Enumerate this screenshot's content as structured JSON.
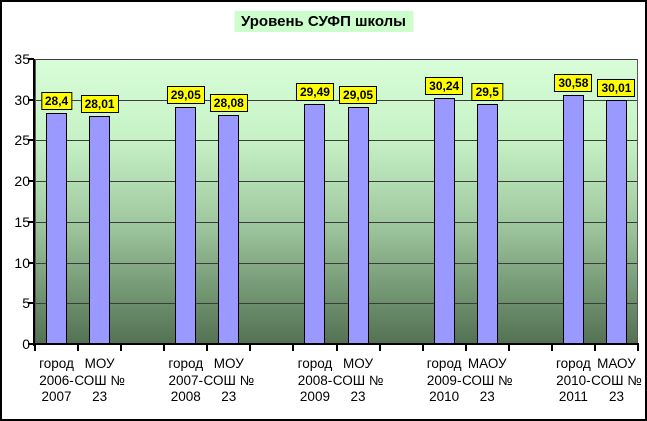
{
  "title": {
    "text": "Уровень СУФП школы"
  },
  "chart_data": {
    "type": "bar",
    "title": "Уровень СУФП школы",
    "xlabel": "",
    "ylabel": "",
    "ylim": [
      0,
      35
    ],
    "yticks": [
      0,
      5,
      10,
      15,
      20,
      25,
      30,
      35
    ],
    "grid": true,
    "legend_position": "none",
    "decimal_separator": ",",
    "categories": [
      "город 2006-2007",
      "МОУ СОШ № 23",
      "город 2007-2008",
      "МОУ СОШ № 23",
      "город 2008-2009",
      "МОУ СОШ № 23",
      "город 2009-2010",
      "МАОУ СОШ № 23",
      "город 2010-2011",
      "МАОУ СОШ № 23"
    ],
    "category_lines": [
      [
        "город",
        "2006-",
        "2007"
      ],
      [
        "МОУ",
        "СОШ №",
        "23"
      ],
      [
        "город",
        "2007-",
        "2008"
      ],
      [
        "МОУ",
        "СОШ №",
        "23"
      ],
      [
        "город",
        "2008-",
        "2009"
      ],
      [
        "МОУ",
        "СОШ №",
        "23"
      ],
      [
        "город",
        "2009-",
        "2010"
      ],
      [
        "МАОУ",
        "СОШ №",
        "23"
      ],
      [
        "город",
        "2010-",
        "2011"
      ],
      [
        "МАОУ",
        "СОШ №",
        "23"
      ]
    ],
    "values": [
      28.4,
      28.01,
      29.05,
      28.08,
      29.49,
      29.05,
      30.24,
      29.5,
      30.58,
      30.01
    ],
    "value_labels": [
      "28,4",
      "28,01",
      "29,05",
      "28,08",
      "29,49",
      "29,05",
      "30,24",
      "29,5",
      "30,58",
      "30,01"
    ],
    "group_pairs": [
      [
        0,
        1
      ],
      [
        2,
        3
      ],
      [
        4,
        5
      ],
      [
        6,
        7
      ],
      [
        8,
        9
      ]
    ],
    "colors": {
      "bar_fill": "#9999ff",
      "bar_border": "#000000",
      "value_label_bg": "#ffff00",
      "value_label_border": "#000000",
      "title_bg": "#ccffcc",
      "plot_gradient_top": "#d8fdd8",
      "plot_gradient_mid": "#9fc79f",
      "plot_gradient_bottom": "#547154",
      "gridline": "#3c3c3c",
      "axis": "#000000",
      "background": "#ffffff"
    }
  }
}
